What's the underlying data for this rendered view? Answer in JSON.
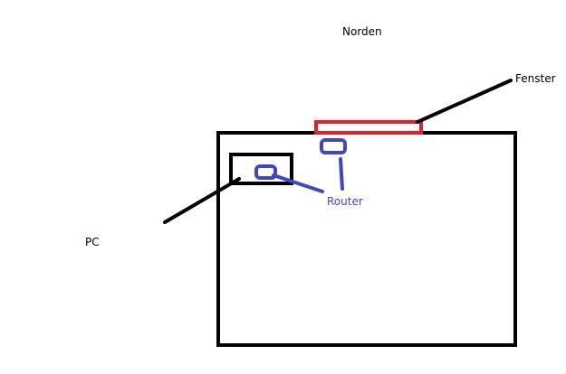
{
  "labels": {
    "north": "Norden",
    "window": "Fenster",
    "pc": "PC",
    "router": "Router"
  },
  "colors": {
    "outline": "#000000",
    "window": "#e0202a",
    "router": "#4048c0",
    "background": "#ffffff"
  }
}
